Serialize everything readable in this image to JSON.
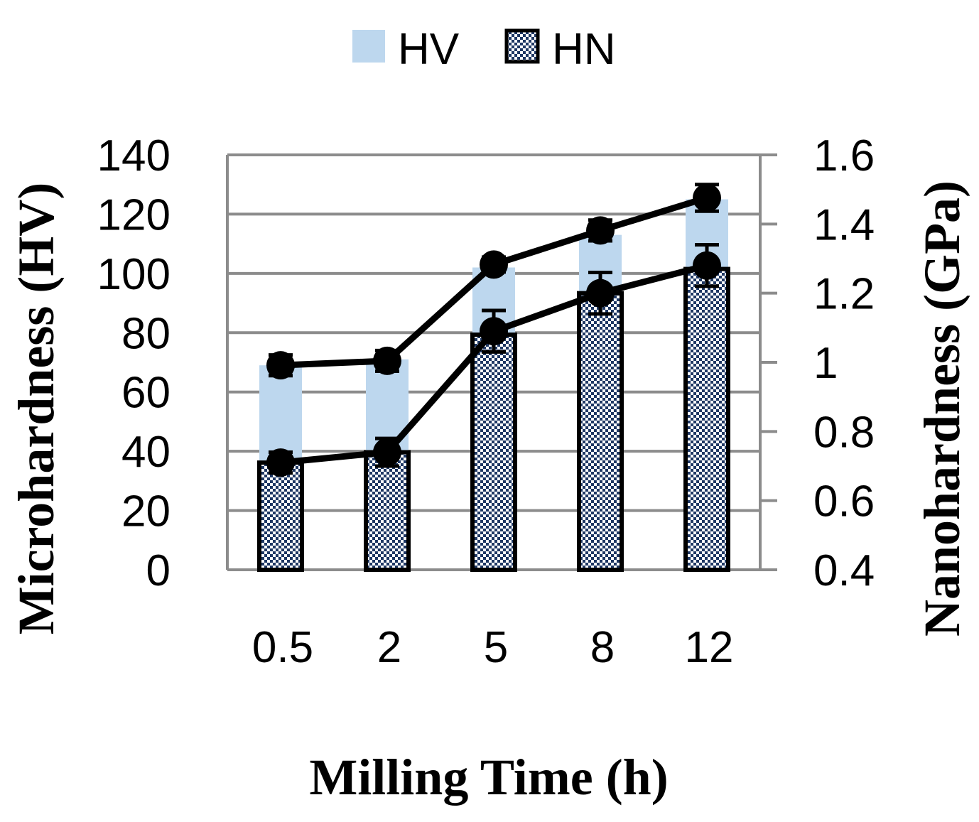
{
  "chart_data": {
    "type": "bar",
    "categories": [
      "0.5",
      "2",
      "5",
      "8",
      "12"
    ],
    "xlabel": "Milling Time (h)",
    "ylabel": "Microhardness (HV)",
    "y2label": "Nanohardness (GPa)",
    "ylim": [
      0,
      140
    ],
    "y2lim": [
      0.4,
      1.6
    ],
    "yticks": [
      "0",
      "20",
      "40",
      "60",
      "80",
      "100",
      "120",
      "140"
    ],
    "y2ticks": [
      "0.4",
      "0.6",
      "0.8",
      "1",
      "1.2",
      "1.4",
      "1.6"
    ],
    "grid": true,
    "legend_position": "top",
    "series": [
      {
        "name": "HV",
        "axis": "left",
        "bar_values": [
          69,
          71,
          102,
          113,
          125
        ],
        "line_values": [
          69,
          70.5,
          103,
          114.5,
          125.5
        ],
        "errors": [
          3.5,
          3.5,
          2.5,
          3.5,
          4.5
        ],
        "color": "#bdd7ee"
      },
      {
        "name": "HN",
        "axis": "right",
        "bar_values": [
          0.71,
          0.74,
          1.08,
          1.2,
          1.27
        ],
        "line_values": [
          0.71,
          0.74,
          1.09,
          1.2,
          1.28
        ],
        "errors": [
          0.03,
          0.04,
          0.06,
          0.06,
          0.06
        ],
        "color": "#1f3864"
      }
    ]
  },
  "legend": {
    "hv_label": "HV",
    "hn_label": "HN"
  }
}
